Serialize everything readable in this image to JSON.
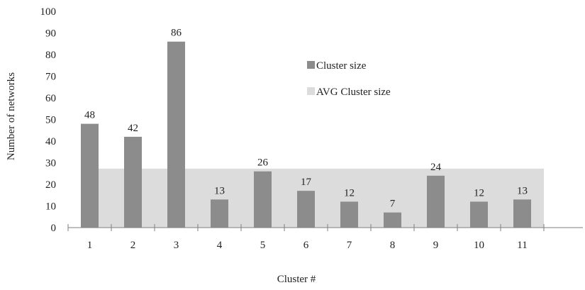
{
  "chart_data": {
    "type": "bar",
    "title": "",
    "xlabel": "Cluster #",
    "ylabel": "Number of networks",
    "categories": [
      "1",
      "2",
      "3",
      "4",
      "5",
      "6",
      "7",
      "8",
      "9",
      "10",
      "11"
    ],
    "series": [
      {
        "name": "Cluster size",
        "color": "#8c8c8c",
        "values": [
          48,
          42,
          86,
          13,
          26,
          17,
          12,
          7,
          24,
          12,
          13
        ],
        "data_labels": [
          "48",
          "42",
          "86",
          "13",
          "26",
          "17",
          "12",
          "7",
          "24",
          "12",
          "13"
        ]
      },
      {
        "name": "AVG Cluster size",
        "color": "#dcdcdc",
        "kind": "area",
        "value": 27.27
      }
    ],
    "ylim": [
      0,
      100
    ],
    "yticks": [
      "0",
      "10",
      "20",
      "30",
      "40",
      "50",
      "60",
      "70",
      "80",
      "90",
      "100"
    ],
    "grid": false,
    "legend_position": "center-right"
  }
}
